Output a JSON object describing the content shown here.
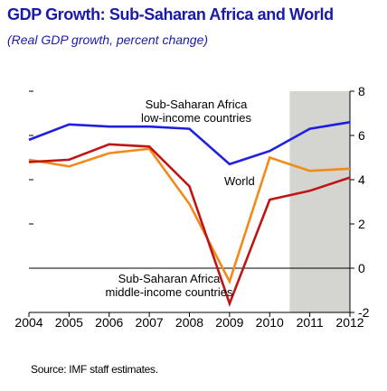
{
  "chart_data": {
    "type": "line",
    "title": "GDP Growth: Sub-Saharan Africa and World",
    "subtitle": "(Real GDP growth, percent change)",
    "source": "Source: IMF staff estimates.",
    "x": [
      "2004",
      "2005",
      "2006",
      "2007",
      "2008",
      "2009",
      "2010",
      "2011",
      "2012"
    ],
    "ylim": [
      -2,
      8
    ],
    "yticks": [
      "-2",
      "0",
      "2",
      "4",
      "6",
      "8"
    ],
    "shaded_region": [
      "2011",
      "2012"
    ],
    "grid": false,
    "series": [
      {
        "name": "Sub-Saharan Africa low-income countries",
        "label_lines": [
          "Sub-Saharan Africa",
          "low-income countries"
        ],
        "color": "#1f1fe0",
        "values": [
          5.8,
          6.5,
          6.4,
          6.4,
          6.3,
          4.7,
          5.3,
          6.3,
          6.6
        ]
      },
      {
        "name": "World",
        "label_lines": [
          "World"
        ],
        "color": "#f28a1a",
        "values": [
          4.9,
          4.6,
          5.2,
          5.4,
          2.9,
          -0.6,
          5.0,
          4.4,
          4.5
        ]
      },
      {
        "name": "Sub-Saharan Africa middle-income countries",
        "label_lines": [
          "Sub-Saharan Africa",
          "middle-income countries"
        ],
        "color": "#c11515",
        "values": [
          4.8,
          4.9,
          5.6,
          5.5,
          3.7,
          -1.6,
          3.1,
          3.5,
          4.1
        ]
      }
    ]
  }
}
